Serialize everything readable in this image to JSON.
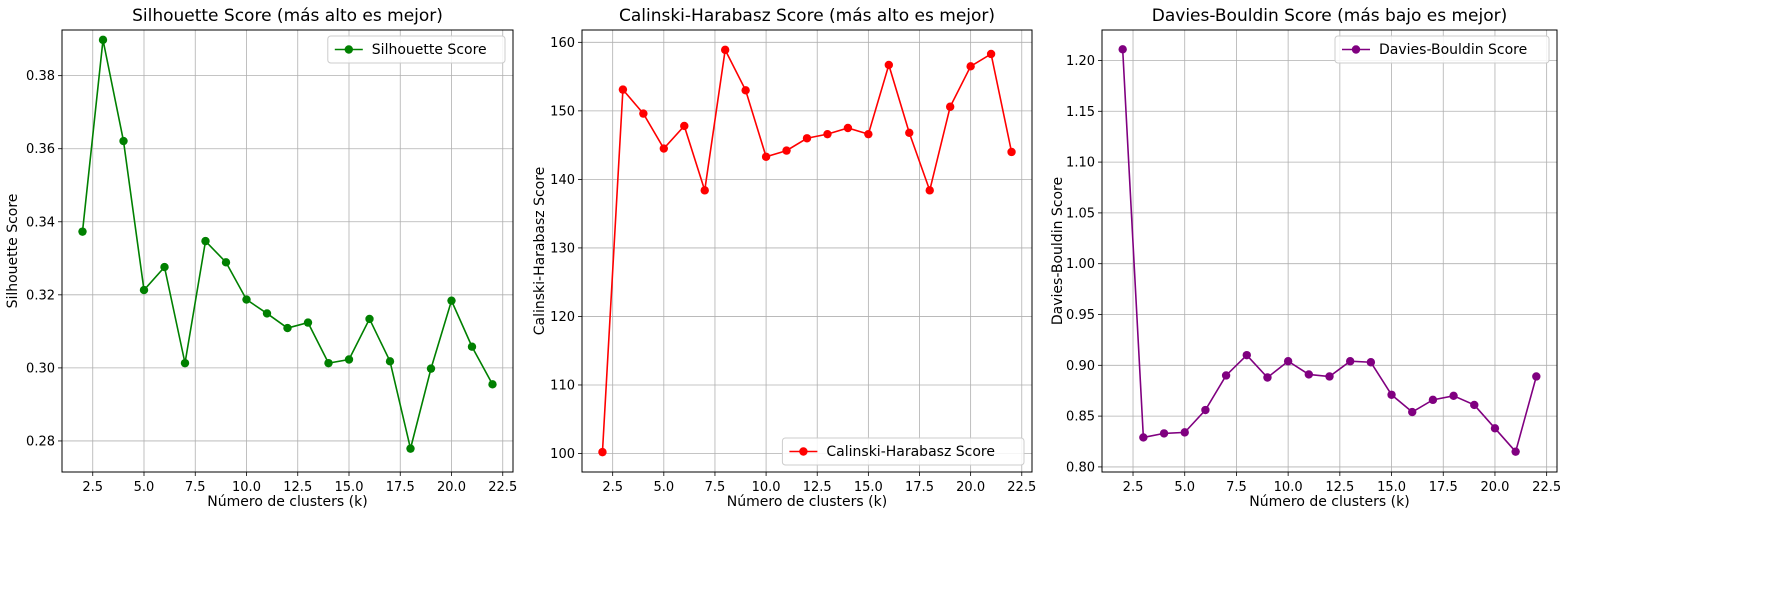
{
  "chart_data": [
    {
      "type": "line",
      "title": "Silhouette Score (más alto es mejor)",
      "xlabel": "Número de clusters (k)",
      "ylabel": "Silhouette Score",
      "x": [
        2,
        3,
        4,
        5,
        6,
        7,
        8,
        9,
        10,
        11,
        12,
        13,
        14,
        15,
        16,
        17,
        18,
        19,
        20,
        21,
        22
      ],
      "series": [
        {
          "name": "Silhouette Score",
          "color": "#008000",
          "values": [
            0.3373,
            0.3898,
            0.3621,
            0.3213,
            0.3276,
            0.3013,
            0.3347,
            0.3289,
            0.3187,
            0.3149,
            0.3109,
            0.3124,
            0.3013,
            0.3023,
            0.3134,
            0.3018,
            0.2779,
            0.2998,
            0.3184,
            0.3058,
            0.2955
          ]
        }
      ],
      "xlim": [
        1,
        23
      ],
      "ylim": [
        0.2715,
        0.3925
      ],
      "xticks": [
        2.5,
        5.0,
        7.5,
        10.0,
        12.5,
        15.0,
        17.5,
        20.0,
        22.5
      ],
      "xtick_labels": [
        "2.5",
        "5.0",
        "7.5",
        "10.0",
        "12.5",
        "15.0",
        "17.5",
        "20.0",
        "22.5"
      ],
      "yticks": [
        0.28,
        0.3,
        0.32,
        0.34,
        0.36,
        0.38
      ],
      "ytick_labels": [
        "0.28",
        "0.30",
        "0.32",
        "0.34",
        "0.36",
        "0.38"
      ],
      "grid": true,
      "legend": "upper right"
    },
    {
      "type": "line",
      "title": "Calinski-Harabasz Score (más alto es mejor)",
      "xlabel": "Número de clusters (k)",
      "ylabel": "Calinski-Harabasz Score",
      "x": [
        2,
        3,
        4,
        5,
        6,
        7,
        8,
        9,
        10,
        11,
        12,
        13,
        14,
        15,
        16,
        17,
        18,
        19,
        20,
        21,
        22
      ],
      "series": [
        {
          "name": "Calinski-Harabasz Score",
          "color": "#ff0000",
          "values": [
            100.2,
            153.1,
            149.6,
            144.5,
            147.8,
            138.4,
            158.9,
            153.0,
            143.3,
            144.2,
            146.0,
            146.6,
            147.5,
            146.6,
            156.7,
            146.8,
            138.4,
            150.6,
            156.5,
            158.3,
            144.0
          ]
        }
      ],
      "xlim": [
        1,
        23
      ],
      "ylim": [
        97.3,
        161.8
      ],
      "xticks": [
        2.5,
        5.0,
        7.5,
        10.0,
        12.5,
        15.0,
        17.5,
        20.0,
        22.5
      ],
      "xtick_labels": [
        "2.5",
        "5.0",
        "7.5",
        "10.0",
        "12.5",
        "15.0",
        "17.5",
        "20.0",
        "22.5"
      ],
      "yticks": [
        100,
        110,
        120,
        130,
        140,
        150,
        160
      ],
      "ytick_labels": [
        "100",
        "110",
        "120",
        "130",
        "140",
        "150",
        "160"
      ],
      "grid": true,
      "legend": "lower right"
    },
    {
      "type": "line",
      "title": "Davies-Bouldin Score (más bajo es mejor)",
      "xlabel": "Número de clusters (k)",
      "ylabel": "Davies-Bouldin Score",
      "x": [
        2,
        3,
        4,
        5,
        6,
        7,
        8,
        9,
        10,
        11,
        12,
        13,
        14,
        15,
        16,
        17,
        18,
        19,
        20,
        21,
        22
      ],
      "series": [
        {
          "name": "Davies-Bouldin Score",
          "color": "#800080",
          "values": [
            1.211,
            0.829,
            0.833,
            0.834,
            0.856,
            0.89,
            0.91,
            0.888,
            0.904,
            0.891,
            0.889,
            0.904,
            0.903,
            0.871,
            0.854,
            0.866,
            0.87,
            0.861,
            0.838,
            0.815,
            0.889
          ]
        }
      ],
      "xlim": [
        1,
        23
      ],
      "ylim": [
        0.795,
        1.23
      ],
      "xticks": [
        2.5,
        5.0,
        7.5,
        10.0,
        12.5,
        15.0,
        17.5,
        20.0,
        22.5
      ],
      "xtick_labels": [
        "2.5",
        "5.0",
        "7.5",
        "10.0",
        "12.5",
        "15.0",
        "17.5",
        "20.0",
        "22.5"
      ],
      "yticks": [
        0.8,
        0.85,
        0.9,
        0.95,
        1.0,
        1.05,
        1.1,
        1.15,
        1.2
      ],
      "ytick_labels": [
        "0.80",
        "0.85",
        "0.90",
        "0.95",
        "1.00",
        "1.05",
        "1.10",
        "1.15",
        "1.20"
      ],
      "grid": true,
      "legend": "upper right"
    }
  ]
}
